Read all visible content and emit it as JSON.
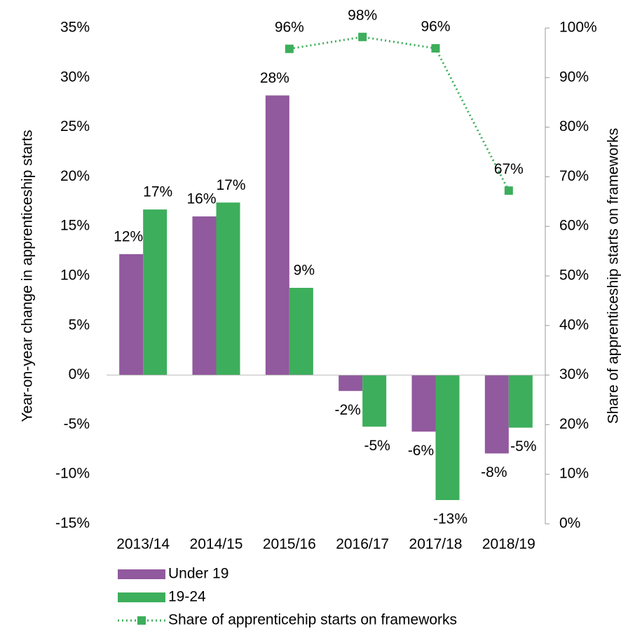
{
  "chart_data": {
    "type": "bar",
    "y_label": "Year-on-year change in apprenticeship starts",
    "y2_label": "Share of apprenticeship starts on frameworks",
    "categories": [
      "2013/14",
      "2014/15",
      "2015/16",
      "2016/17",
      "2017/18",
      "2018/19"
    ],
    "series": [
      {
        "name": "Under 19",
        "color": "#91599e",
        "type": "bar",
        "values": [
          12.2,
          16.0,
          28.2,
          -1.6,
          -5.7,
          -7.9
        ],
        "value_labels": [
          "12%",
          "16%",
          "28%",
          "-2%",
          "-6%",
          "-8%"
        ]
      },
      {
        "name": "19-24",
        "color": "#3dae5b",
        "type": "bar",
        "values": [
          16.7,
          17.4,
          8.8,
          -5.2,
          -12.6,
          -5.3
        ],
        "value_labels": [
          "17%",
          "17%",
          "9%",
          "-5%",
          "-13%",
          "-5%"
        ]
      },
      {
        "name": "Share of apprenticehip starts on frameworks",
        "color": "#3dae5b",
        "type": "line",
        "axis": "y2",
        "values": [
          null,
          null,
          95.8,
          98.2,
          95.9,
          67.2
        ],
        "value_labels": [
          null,
          null,
          "96%",
          "98%",
          "96%",
          "67%"
        ]
      }
    ],
    "ylim": [
      -15,
      35
    ],
    "yticks": [
      {
        "value": -15,
        "label": "-15%"
      },
      {
        "value": -10,
        "label": "-10%"
      },
      {
        "value": -5,
        "label": "-5%"
      },
      {
        "value": 0,
        "label": "0%"
      },
      {
        "value": 5,
        "label": "5%"
      },
      {
        "value": 10,
        "label": "10%"
      },
      {
        "value": 15,
        "label": "15%"
      },
      {
        "value": 20,
        "label": "20%"
      },
      {
        "value": 25,
        "label": "25%"
      },
      {
        "value": 30,
        "label": "30%"
      },
      {
        "value": 35,
        "label": "35%"
      }
    ],
    "y2lim": [
      0,
      100
    ],
    "y2ticks": [
      {
        "value": 0,
        "label": "0%"
      },
      {
        "value": 10,
        "label": "10%"
      },
      {
        "value": 20,
        "label": "20%"
      },
      {
        "value": 30,
        "label": "30%"
      },
      {
        "value": 40,
        "label": "40%"
      },
      {
        "value": 50,
        "label": "50%"
      },
      {
        "value": 60,
        "label": "60%"
      },
      {
        "value": 70,
        "label": "70%"
      },
      {
        "value": 80,
        "label": "80%"
      },
      {
        "value": 90,
        "label": "90%"
      },
      {
        "value": 100,
        "label": "100%"
      }
    ],
    "legend": "bottom-left"
  }
}
